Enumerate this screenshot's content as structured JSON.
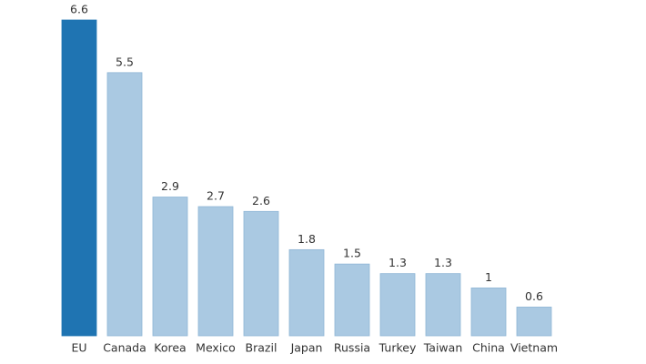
{
  "chart_data": {
    "type": "bar",
    "categories": [
      "EU",
      "Canada",
      "Korea",
      "Mexico",
      "Brazil",
      "Japan",
      "Russia",
      "Turkey",
      "Taiwan",
      "China",
      "Vietnam"
    ],
    "values": [
      6.6,
      5.5,
      2.9,
      2.7,
      2.6,
      1.8,
      1.5,
      1.3,
      1.3,
      1,
      0.6
    ],
    "colors": [
      "#1f74b2",
      "#aac9e2",
      "#aac9e2",
      "#aac9e2",
      "#aac9e2",
      "#aac9e2",
      "#aac9e2",
      "#aac9e2",
      "#aac9e2",
      "#aac9e2",
      "#aac9e2"
    ]
  }
}
